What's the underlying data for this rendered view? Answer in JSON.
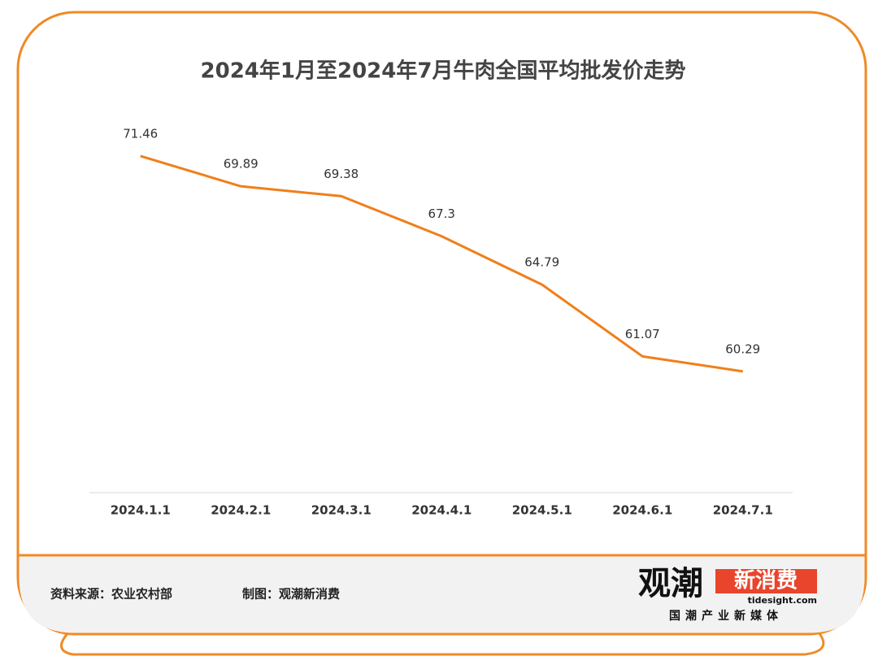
{
  "chart_data": {
    "type": "line",
    "title": "2024年1月至2024年7月牛肉全国平均批发价走势",
    "categories": [
      "2024.1.1",
      "2024.2.1",
      "2024.3.1",
      "2024.4.1",
      "2024.5.1",
      "2024.6.1",
      "2024.7.1"
    ],
    "values": [
      71.46,
      69.89,
      69.38,
      67.3,
      64.79,
      61.07,
      60.29
    ],
    "color": "#f07f1a",
    "ylim": [
      54,
      75
    ]
  },
  "footer": {
    "source": "资料来源：农业农村部",
    "credit": "制图：观潮新消费",
    "logo": {
      "mark": "观潮",
      "badge": "新消费",
      "domain": "tidesight.com",
      "tagline": "国潮产业新媒体"
    }
  }
}
